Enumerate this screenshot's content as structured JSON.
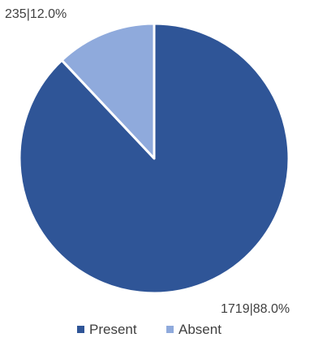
{
  "chart_data": {
    "type": "pie",
    "title": "",
    "series": [
      {
        "name": "",
        "slices": [
          {
            "label": "Present",
            "value": 1719,
            "percent": "88.0%",
            "color": "#2F5597",
            "data_label": "1719|88.0%"
          },
          {
            "label": "Absent",
            "value": 235,
            "percent": "12.0%",
            "color": "#8FAADC",
            "data_label": "235|12.0%"
          }
        ]
      }
    ],
    "start_angle_deg": 0,
    "direction": "clockwise",
    "legend": {
      "placement": "bottom",
      "items": [
        "Present",
        "Absent"
      ]
    }
  }
}
